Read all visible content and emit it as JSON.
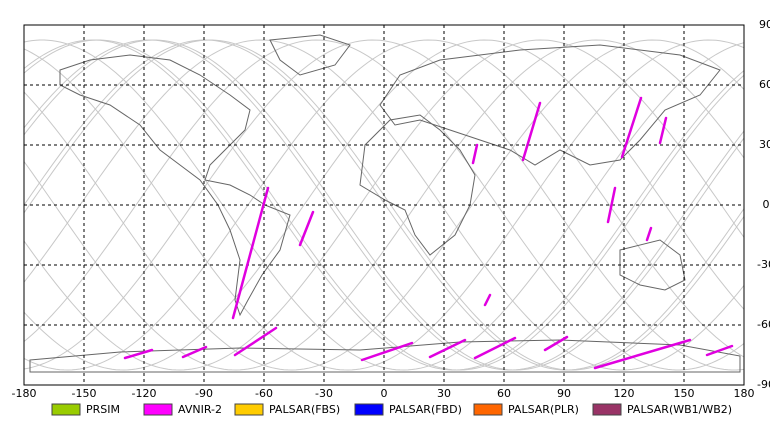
{
  "map": {
    "xlim": [
      -180,
      180
    ],
    "ylim": [
      -90,
      90
    ],
    "xticks": [
      -180,
      -150,
      -120,
      -90,
      -60,
      -30,
      0,
      30,
      60,
      90,
      120,
      150,
      180
    ],
    "yticks": [
      90,
      60,
      30,
      0,
      -30,
      -60,
      -90
    ],
    "legend": [
      {
        "name": "PRSIM",
        "color": "#99cc00"
      },
      {
        "name": "AVNIR-2",
        "color": "#ff00ff"
      },
      {
        "name": "PALSAR(FBS)",
        "color": "#ffcc00"
      },
      {
        "name": "PALSAR(FBD)",
        "color": "#0000ff"
      },
      {
        "name": "PALSAR(PLR)",
        "color": "#ff6600"
      },
      {
        "name": "PALSAR(WB1/WB2)",
        "color": "#993366"
      }
    ]
  }
}
